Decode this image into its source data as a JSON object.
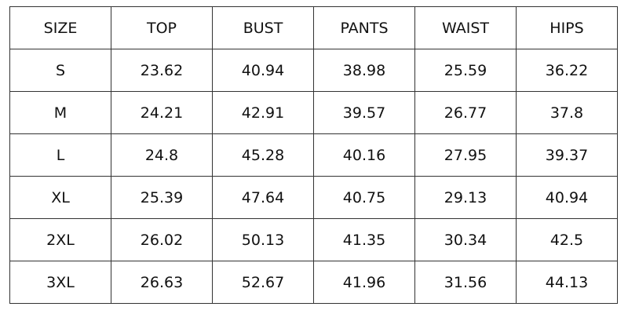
{
  "table": {
    "header": [
      "SIZE",
      "TOP",
      "BUST",
      "PANTS",
      "WAIST",
      "HIPS"
    ],
    "rows": [
      [
        "S",
        "23.62",
        "40.94",
        "38.98",
        "25.59",
        "36.22"
      ],
      [
        "M",
        "24.21",
        "42.91",
        "39.57",
        "26.77",
        "37.8"
      ],
      [
        "L",
        "24.8",
        "45.28",
        "40.16",
        "27.95",
        "39.37"
      ],
      [
        "XL",
        "25.39",
        "47.64",
        "40.75",
        "29.13",
        "40.94"
      ],
      [
        "2XL",
        "26.02",
        "50.13",
        "41.35",
        "30.34",
        "42.5"
      ],
      [
        "3XL",
        "26.63",
        "52.67",
        "41.96",
        "31.56",
        "44.13"
      ]
    ]
  }
}
